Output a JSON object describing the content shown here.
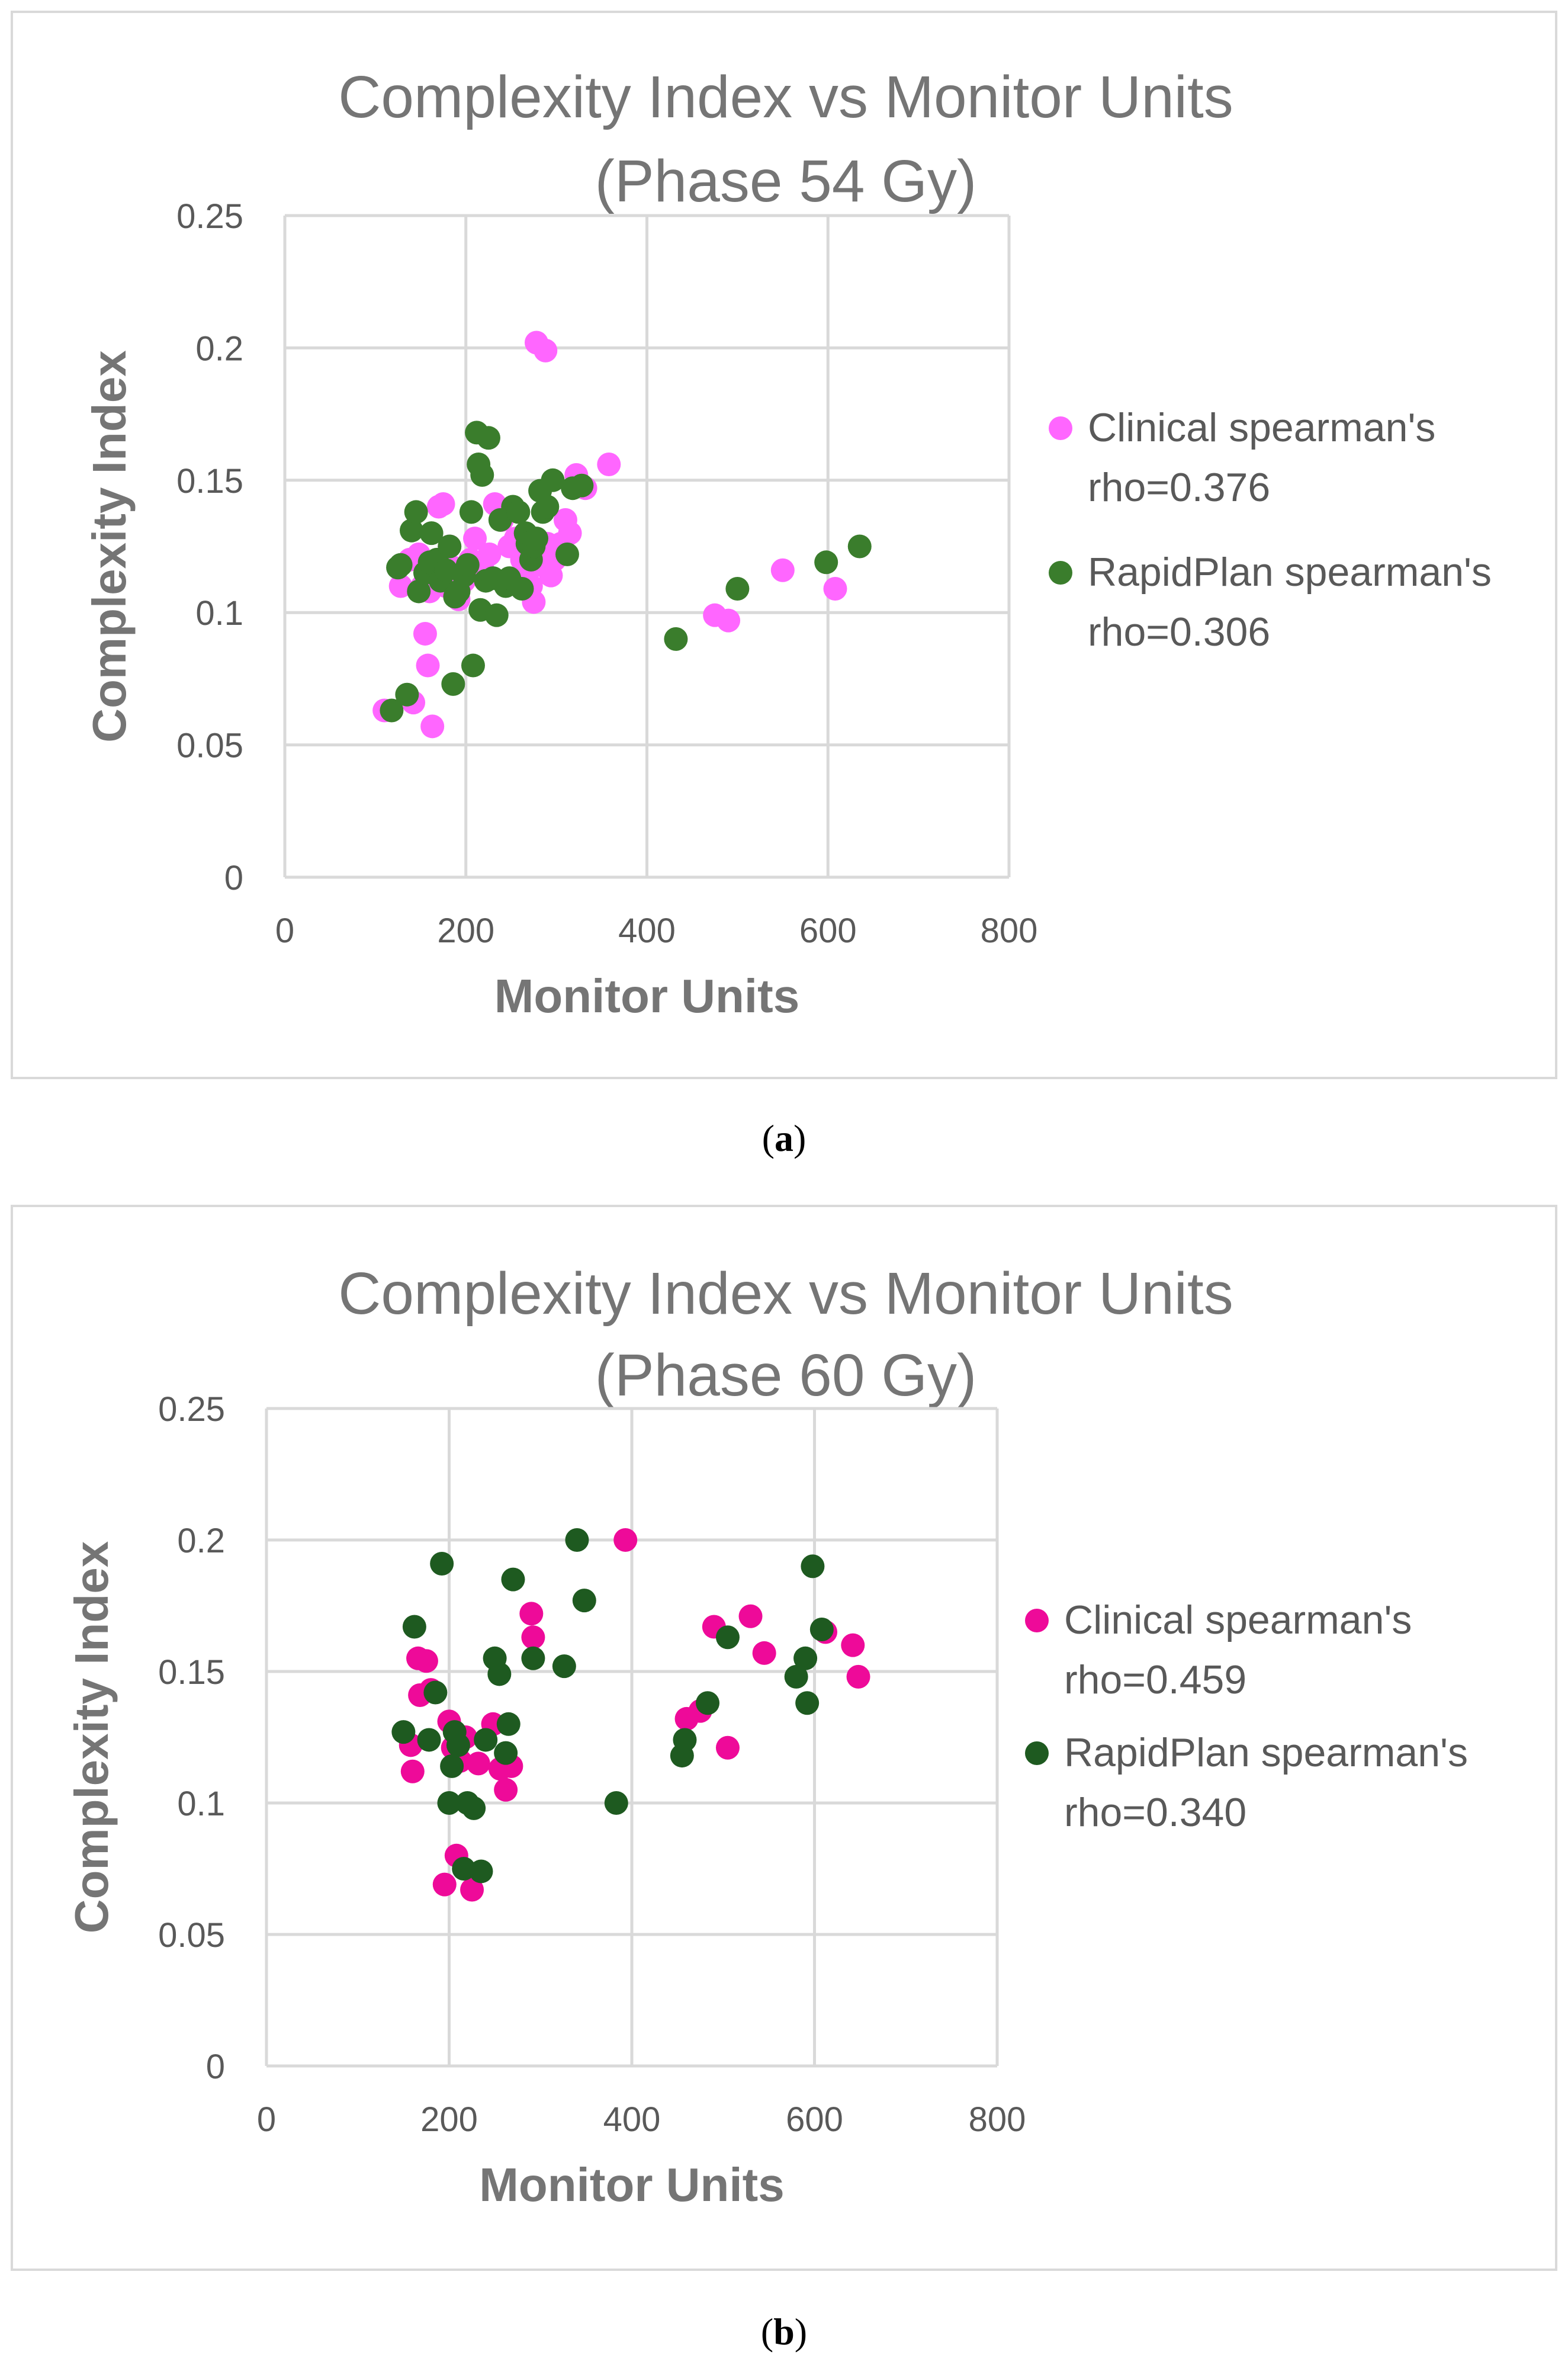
{
  "chart_data": [
    {
      "type": "scatter",
      "title_line1": "Complexity Index vs Monitor Units",
      "title_line2": "(Phase 54 Gy)",
      "xlabel": "Monitor Units",
      "ylabel": "Complexity Index",
      "xlim": [
        0,
        800
      ],
      "ylim": [
        0,
        0.25
      ],
      "xticks": [
        0,
        200,
        400,
        600,
        800
      ],
      "xtick_labels": [
        "0",
        "200",
        "400",
        "600",
        "800"
      ],
      "yticks": [
        0,
        0.05,
        0.1,
        0.15,
        0.2,
        0.25
      ],
      "ytick_labels": [
        "0",
        "0.05",
        "0.1",
        "0.15",
        "0.2",
        "0.25"
      ],
      "grid": true,
      "legend_position": "right",
      "caption": "a",
      "series": [
        {
          "name": "Clinical",
          "legend_line1": "Clinical spearman's",
          "legend_line2": "rho=0.376",
          "color": "#ff66ff",
          "points": [
            [
              110,
              0.063
            ],
            [
              128,
              0.11
            ],
            [
              138,
              0.12
            ],
            [
              142,
              0.066
            ],
            [
              148,
              0.122
            ],
            [
              152,
              0.11
            ],
            [
              155,
              0.092
            ],
            [
              158,
              0.08
            ],
            [
              160,
              0.108
            ],
            [
              163,
              0.057
            ],
            [
              168,
              0.115
            ],
            [
              170,
              0.14
            ],
            [
              175,
              0.141
            ],
            [
              178,
              0.11
            ],
            [
              182,
              0.125
            ],
            [
              186,
              0.117
            ],
            [
              192,
              0.105
            ],
            [
              198,
              0.112
            ],
            [
              205,
              0.12
            ],
            [
              210,
              0.128
            ],
            [
              218,
              0.118
            ],
            [
              226,
              0.122
            ],
            [
              232,
              0.141
            ],
            [
              240,
              0.135
            ],
            [
              248,
              0.125
            ],
            [
              255,
              0.128
            ],
            [
              262,
              0.12
            ],
            [
              268,
              0.115
            ],
            [
              272,
              0.11
            ],
            [
              275,
              0.104
            ],
            [
              278,
              0.202
            ],
            [
              282,
              0.118
            ],
            [
              288,
              0.199
            ],
            [
              290,
              0.126
            ],
            [
              294,
              0.114
            ],
            [
              298,
              0.12
            ],
            [
              305,
              0.126
            ],
            [
              310,
              0.135
            ],
            [
              315,
              0.13
            ],
            [
              322,
              0.152
            ],
            [
              332,
              0.147
            ],
            [
              358,
              0.156
            ],
            [
              475,
              0.099
            ],
            [
              490,
              0.097
            ],
            [
              550,
              0.116
            ],
            [
              608,
              0.109
            ]
          ]
        },
        {
          "name": "RapidPlan",
          "legend_line1": "RapidPlan spearman's",
          "legend_line2": "rho=0.306",
          "color": "#3a7d2c",
          "points": [
            [
              118,
              0.063
            ],
            [
              125,
              0.117
            ],
            [
              128,
              0.118
            ],
            [
              135,
              0.069
            ],
            [
              140,
              0.131
            ],
            [
              145,
              0.138
            ],
            [
              148,
              0.108
            ],
            [
              155,
              0.115
            ],
            [
              160,
              0.119
            ],
            [
              162,
              0.13
            ],
            [
              168,
              0.12
            ],
            [
              172,
              0.112
            ],
            [
              178,
              0.116
            ],
            [
              182,
              0.125
            ],
            [
              186,
              0.073
            ],
            [
              188,
              0.106
            ],
            [
              192,
              0.108
            ],
            [
              198,
              0.114
            ],
            [
              202,
              0.118
            ],
            [
              206,
              0.138
            ],
            [
              208,
              0.08
            ],
            [
              212,
              0.168
            ],
            [
              214,
              0.156
            ],
            [
              216,
              0.101
            ],
            [
              218,
              0.152
            ],
            [
              222,
              0.112
            ],
            [
              225,
              0.166
            ],
            [
              230,
              0.113
            ],
            [
              234,
              0.099
            ],
            [
              238,
              0.135
            ],
            [
              244,
              0.11
            ],
            [
              248,
              0.113
            ],
            [
              252,
              0.14
            ],
            [
              258,
              0.138
            ],
            [
              262,
              0.109
            ],
            [
              266,
              0.13
            ],
            [
              268,
              0.126
            ],
            [
              272,
              0.12
            ],
            [
              275,
              0.125
            ],
            [
              278,
              0.128
            ],
            [
              282,
              0.146
            ],
            [
              285,
              0.138
            ],
            [
              290,
              0.14
            ],
            [
              296,
              0.15
            ],
            [
              312,
              0.122
            ],
            [
              318,
              0.147
            ],
            [
              328,
              0.148
            ],
            [
              432,
              0.09
            ],
            [
              500,
              0.109
            ],
            [
              598,
              0.119
            ],
            [
              635,
              0.125
            ]
          ]
        }
      ]
    },
    {
      "type": "scatter",
      "title_line1": "Complexity Index vs Monitor Units",
      "title_line2": "(Phase 60 Gy)",
      "xlabel": "Monitor Units",
      "ylabel": "Complexity Index",
      "xlim": [
        0,
        800
      ],
      "ylim": [
        0,
        0.25
      ],
      "xticks": [
        0,
        200,
        400,
        600,
        800
      ],
      "xtick_labels": [
        "0",
        "200",
        "400",
        "600",
        "800"
      ],
      "yticks": [
        0,
        0.05,
        0.1,
        0.15,
        0.2,
        0.25
      ],
      "ytick_labels": [
        "0",
        "0.05",
        "0.1",
        "0.15",
        "0.2",
        "0.25"
      ],
      "grid": true,
      "legend_position": "right",
      "caption": "b",
      "series": [
        {
          "name": "Clinical",
          "legend_line1": "Clinical spearman's",
          "legend_line2": "rho=0.459",
          "color": "#ee0a99",
          "points": [
            [
              158,
              0.122
            ],
            [
              160,
              0.112
            ],
            [
              166,
              0.155
            ],
            [
              168,
              0.141
            ],
            [
              175,
              0.154
            ],
            [
              180,
              0.143
            ],
            [
              195,
              0.069
            ],
            [
              200,
              0.131
            ],
            [
              204,
              0.121
            ],
            [
              208,
              0.08
            ],
            [
              212,
              0.116
            ],
            [
              218,
              0.125
            ],
            [
              225,
              0.067
            ],
            [
              232,
              0.115
            ],
            [
              248,
              0.13
            ],
            [
              256,
              0.113
            ],
            [
              262,
              0.105
            ],
            [
              268,
              0.114
            ],
            [
              290,
              0.172
            ],
            [
              292,
              0.163
            ],
            [
              393,
              0.2
            ],
            [
              460,
              0.132
            ],
            [
              475,
              0.135
            ],
            [
              490,
              0.167
            ],
            [
              505,
              0.121
            ],
            [
              530,
              0.171
            ],
            [
              545,
              0.157
            ],
            [
              612,
              0.165
            ],
            [
              642,
              0.16
            ],
            [
              648,
              0.148
            ]
          ]
        },
        {
          "name": "RapidPlan",
          "legend_line1": "RapidPlan spearman's",
          "legend_line2": "rho=0.340",
          "color": "#1e5a20",
          "points": [
            [
              150,
              0.127
            ],
            [
              162,
              0.167
            ],
            [
              178,
              0.124
            ],
            [
              185,
              0.142
            ],
            [
              192,
              0.191
            ],
            [
              200,
              0.1
            ],
            [
              203,
              0.114
            ],
            [
              206,
              0.127
            ],
            [
              210,
              0.122
            ],
            [
              216,
              0.075
            ],
            [
              220,
              0.1
            ],
            [
              227,
              0.098
            ],
            [
              235,
              0.074
            ],
            [
              240,
              0.124
            ],
            [
              250,
              0.155
            ],
            [
              255,
              0.149
            ],
            [
              262,
              0.119
            ],
            [
              265,
              0.13
            ],
            [
              270,
              0.185
            ],
            [
              292,
              0.155
            ],
            [
              326,
              0.152
            ],
            [
              340,
              0.2
            ],
            [
              348,
              0.177
            ],
            [
              383,
              0.1
            ],
            [
              455,
              0.118
            ],
            [
              458,
              0.124
            ],
            [
              483,
              0.138
            ],
            [
              505,
              0.163
            ],
            [
              580,
              0.148
            ],
            [
              590,
              0.155
            ],
            [
              592,
              0.138
            ],
            [
              598,
              0.19
            ],
            [
              608,
              0.166
            ]
          ]
        }
      ]
    }
  ]
}
